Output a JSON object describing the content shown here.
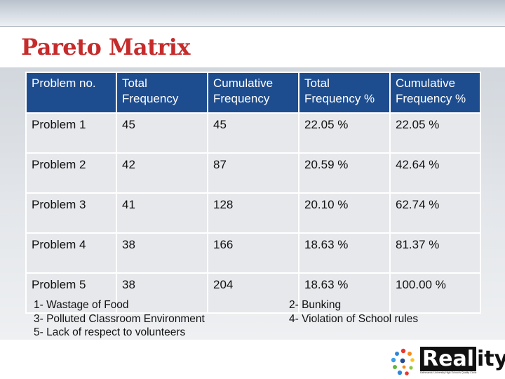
{
  "title": "Pareto Matrix",
  "table": {
    "headers": [
      "Problem no.",
      "Total\nFrequency",
      "Cumulative\nFrequency",
      "Total\nFrequency %",
      "Cumulative\nFrequency %"
    ],
    "rows": [
      [
        "Problem 1",
        "45",
        "45",
        "22.05 %",
        "22.05 %"
      ],
      [
        "Problem 2",
        "42",
        "87",
        "20.59 %",
        "42.64 %"
      ],
      [
        "Problem 3",
        "41",
        "128",
        "20.10 %",
        "62.74 %"
      ],
      [
        "Problem 4",
        "38",
        "166",
        "18.63 %",
        "81.37 %"
      ],
      [
        "Problem 5",
        "38",
        "204",
        "18.63 %",
        "100.00 %"
      ]
    ]
  },
  "notes_left": [
    "1- Wastage of Food",
    "3- Polluted Classroom Environment",
    "5- Lack of respect to volunteers"
  ],
  "notes_right": [
    "2- Bunking",
    "4- Violation of School rules"
  ],
  "logo": {
    "boxed_text": "Real",
    "rest_text": "ity",
    "tagline": "Kathmandu University High School's Quality Circle"
  },
  "colors": {
    "title": "#c62b2b",
    "header_bg": "#1e4d8f",
    "cell_bg": "#e6e8eb"
  }
}
